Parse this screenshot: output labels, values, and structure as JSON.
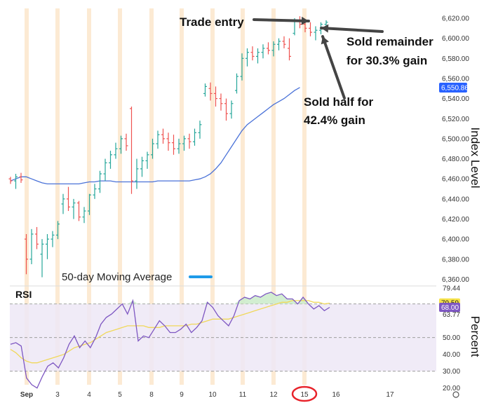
{
  "chart_data": [
    {
      "type": "ohlc",
      "ylabel": "Index Level",
      "ylim": [
        6350,
        6635
      ],
      "ytick_labels": [
        "6,620.00",
        "6,600.00",
        "6,580.00",
        "6,560.00",
        "6,540.00",
        "6,520.00",
        "6,500.00",
        "6,480.00",
        "6,460.00",
        "6,440.00",
        "6,420.00",
        "6,400.00",
        "6,380.00",
        "6,360.00"
      ],
      "ytick_values": [
        6620,
        6600,
        6580,
        6560,
        6540,
        6520,
        6500,
        6480,
        6460,
        6440,
        6420,
        6400,
        6380,
        6360
      ],
      "last_price_label": "6,550.86",
      "last_price_value": 6550.86,
      "colors": {
        "up": "#26a69a",
        "down": "#ef5350",
        "ma": "#4a72d8",
        "badge": "#2962ff",
        "highlight": "#fbe3c4"
      },
      "bars": [
        [
          6460,
          6462,
          6455,
          6458
        ],
        [
          6458,
          6465,
          6450,
          6462
        ],
        [
          6462,
          6466,
          6456,
          6459
        ],
        [
          6400,
          6405,
          6365,
          6380
        ],
        [
          6380,
          6410,
          6375,
          6405
        ],
        [
          6405,
          6412,
          6390,
          6395
        ],
        [
          6385,
          6400,
          6362,
          6395
        ],
        [
          6395,
          6405,
          6380,
          6400
        ],
        [
          6400,
          6408,
          6392,
          6404
        ],
        [
          6404,
          6418,
          6400,
          6415
        ],
        [
          6435,
          6445,
          6425,
          6440
        ],
        [
          6440,
          6452,
          6428,
          6432
        ],
        [
          6432,
          6440,
          6420,
          6436
        ],
        [
          6436,
          6438,
          6418,
          6422
        ],
        [
          6422,
          6432,
          6416,
          6428
        ],
        [
          6428,
          6445,
          6424,
          6444
        ],
        [
          6444,
          6455,
          6440,
          6450
        ],
        [
          6450,
          6468,
          6446,
          6465
        ],
        [
          6465,
          6480,
          6458,
          6476
        ],
        [
          6476,
          6488,
          6470,
          6484
        ],
        [
          6484,
          6496,
          6480,
          6490
        ],
        [
          6490,
          6503,
          6485,
          6500
        ],
        [
          6500,
          6505,
          6488,
          6493
        ],
        [
          6530,
          6532,
          6445,
          6458
        ],
        [
          6458,
          6480,
          6450,
          6470
        ],
        [
          6470,
          6482,
          6462,
          6478
        ],
        [
          6478,
          6487,
          6470,
          6484
        ],
        [
          6484,
          6500,
          6480,
          6495
        ],
        [
          6495,
          6508,
          6490,
          6504
        ],
        [
          6504,
          6510,
          6495,
          6500
        ],
        [
          6500,
          6506,
          6488,
          6496
        ],
        [
          6496,
          6504,
          6484,
          6490
        ],
        [
          6490,
          6500,
          6485,
          6495
        ],
        [
          6495,
          6503,
          6488,
          6500
        ],
        [
          6500,
          6505,
          6490,
          6497
        ],
        [
          6497,
          6510,
          6493,
          6506
        ],
        [
          6506,
          6518,
          6500,
          6514
        ],
        [
          6545,
          6555,
          6542,
          6552
        ],
        [
          6550,
          6556,
          6538,
          6545
        ],
        [
          6545,
          6552,
          6532,
          6540
        ],
        [
          6540,
          6545,
          6528,
          6535
        ],
        [
          6535,
          6540,
          6518,
          6525
        ],
        [
          6525,
          6538,
          6520,
          6535
        ],
        [
          6548,
          6565,
          6545,
          6562
        ],
        [
          6562,
          6585,
          6558,
          6580
        ],
        [
          6580,
          6590,
          6572,
          6586
        ],
        [
          6586,
          6592,
          6578,
          6582
        ],
        [
          6582,
          6590,
          6575,
          6586
        ],
        [
          6586,
          6594,
          6580,
          6590
        ],
        [
          6590,
          6596,
          6584,
          6588
        ],
        [
          6588,
          6597,
          6582,
          6594
        ],
        [
          6594,
          6600,
          6588,
          6597
        ],
        [
          6597,
          6602,
          6590,
          6594
        ],
        [
          6590,
          6600,
          6578,
          6582
        ],
        [
          6605,
          6620,
          6603,
          6618
        ],
        [
          6618,
          6622,
          6610,
          6614
        ],
        [
          6614,
          6618,
          6606,
          6610
        ],
        [
          6610,
          6616,
          6602,
          6606
        ],
        [
          6606,
          6612,
          6598,
          6608
        ],
        [
          6608,
          6616,
          6604,
          6614
        ],
        [
          6614,
          6618,
          6608,
          6616
        ]
      ],
      "moving_average": [
        6458,
        6460,
        6462,
        6462,
        6460,
        6458,
        6456,
        6455,
        6455,
        6455,
        6455,
        6455,
        6455,
        6455,
        6456,
        6457,
        6457,
        6458,
        6458,
        6458,
        6457,
        6457,
        6457,
        6457,
        6457,
        6457,
        6457,
        6457,
        6458,
        6458,
        6458,
        6458,
        6458,
        6458,
        6458,
        6459,
        6460,
        6462,
        6465,
        6470,
        6476,
        6484,
        6492,
        6500,
        6508,
        6514,
        6518,
        6522,
        6526,
        6530,
        6534,
        6537,
        6540,
        6544,
        6548,
        6551
      ],
      "legend": {
        "text": "50-day Moving Average",
        "color": "#1e9be9"
      },
      "annotations": [
        {
          "text": "Trade entry"
        },
        {
          "text": "Sold remainder",
          "text2": "for 30.3% gain"
        },
        {
          "text": "Sold half for",
          "text2": "42.4% gain"
        }
      ]
    },
    {
      "type": "line",
      "title": "RSI",
      "ylabel": "Percent",
      "ylim": [
        18,
        82
      ],
      "ytick_values": [
        79.44,
        63.77,
        50.0,
        40.0,
        30.0,
        20.0
      ],
      "ytick_labels": [
        "79.44",
        "63.77",
        "50.00",
        "40.00",
        "30.00",
        "20.00"
      ],
      "bands": {
        "upper": 70,
        "lower": 30
      },
      "badges": [
        {
          "label": "70.59",
          "value": 70.59,
          "bg": "#f6e24a",
          "fg": "#222222"
        },
        {
          "label": "68.00",
          "value": 68.0,
          "bg": "#7e57c2",
          "fg": "#ffffff"
        }
      ],
      "rsi": [
        46,
        47,
        45,
        26,
        22,
        20,
        27,
        33,
        35,
        32,
        38,
        46,
        51,
        44,
        48,
        44,
        50,
        58,
        62,
        64,
        67,
        70,
        64,
        72,
        48,
        51,
        50,
        55,
        60,
        57,
        53,
        53,
        55,
        58,
        53,
        56,
        60,
        71,
        68,
        63,
        60,
        57,
        63,
        72,
        74,
        73,
        75,
        74,
        76,
        77,
        75,
        76,
        73,
        73,
        70,
        74,
        70,
        67,
        69,
        66,
        68
      ],
      "rsi_ma": [
        43,
        41,
        38,
        36,
        35,
        35,
        36,
        37,
        38,
        39,
        40,
        42,
        44,
        45,
        46,
        47,
        49,
        51,
        53,
        54,
        55,
        56,
        57,
        57,
        57,
        57,
        56,
        56,
        56,
        57,
        57,
        57,
        57,
        57,
        58,
        58,
        59,
        60,
        61,
        61,
        61,
        61,
        62,
        63,
        64,
        65,
        66,
        67,
        68,
        69,
        70,
        71,
        71,
        72,
        72,
        72,
        72,
        71,
        71,
        70,
        70.5
      ],
      "colors": {
        "rsi": "#7e57c2",
        "ma": "#f0d85a",
        "band_fill": "#ede7f6",
        "over_fill": "#cdeccc"
      }
    }
  ],
  "x_axis": {
    "labels": [
      "Sep",
      "3",
      "4",
      "5",
      "8",
      "9",
      "10",
      "11",
      "12",
      "15",
      "16",
      "17"
    ],
    "highlighted": "15",
    "highlight_color": "#e8232b"
  }
}
